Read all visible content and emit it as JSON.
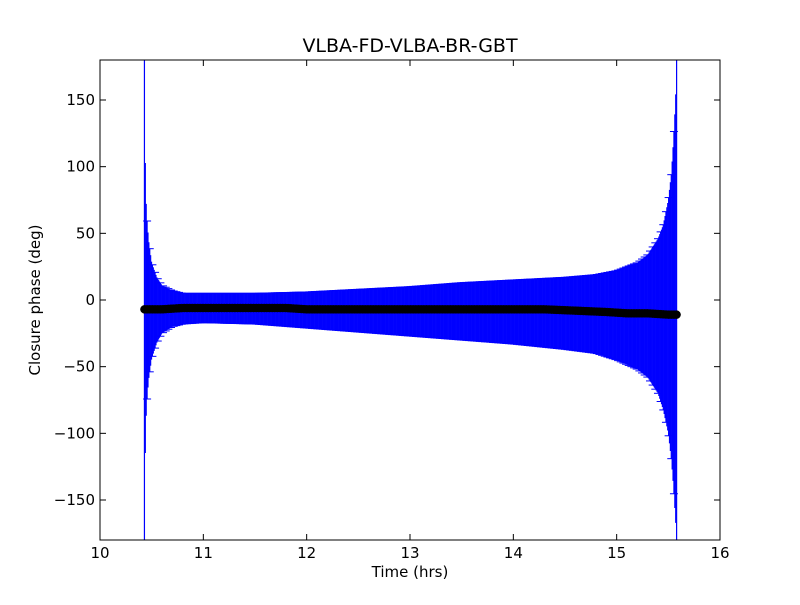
{
  "chart_data": {
    "type": "scatter",
    "title": "VLBA-FD-VLBA-BR-GBT",
    "xlabel": "Time (hrs)",
    "ylabel": "Closure phase (deg)",
    "xlim": [
      10,
      16
    ],
    "ylim": [
      -180,
      180
    ],
    "xticks": [
      10,
      11,
      12,
      13,
      14,
      15,
      16
    ],
    "yticks": [
      -150,
      -100,
      -50,
      0,
      50,
      100,
      150
    ],
    "xtick_labels": [
      "10",
      "11",
      "12",
      "13",
      "14",
      "15",
      "16"
    ],
    "ytick_labels": [
      "−150",
      "−100",
      "−50",
      "0",
      "50",
      "100",
      "150"
    ],
    "grid": false,
    "legend": "none",
    "series": [
      {
        "points": [
          [
            10.43,
            -7
          ],
          [
            10.6,
            -7
          ],
          [
            10.8,
            -6
          ],
          [
            11.0,
            -6
          ],
          [
            11.2,
            -6
          ],
          [
            11.5,
            -6
          ],
          [
            11.8,
            -6
          ],
          [
            12.0,
            -7
          ],
          [
            12.3,
            -7
          ],
          [
            12.6,
            -7
          ],
          [
            13.0,
            -7
          ],
          [
            13.4,
            -7
          ],
          [
            13.8,
            -7
          ],
          [
            14.0,
            -7
          ],
          [
            14.3,
            -7
          ],
          [
            14.6,
            -8
          ],
          [
            14.9,
            -9
          ],
          [
            15.1,
            -10
          ],
          [
            15.3,
            -10
          ],
          [
            15.5,
            -11
          ],
          [
            15.58,
            -11
          ]
        ],
        "error_upper": [
          [
            10.43,
            180
          ],
          [
            10.44,
            90
          ],
          [
            10.45,
            65
          ],
          [
            10.47,
            45
          ],
          [
            10.5,
            28
          ],
          [
            10.55,
            17
          ],
          [
            10.6,
            11
          ],
          [
            10.7,
            7
          ],
          [
            10.8,
            5
          ],
          [
            11.0,
            5
          ],
          [
            11.5,
            5
          ],
          [
            12.0,
            6
          ],
          [
            12.5,
            8
          ],
          [
            13.0,
            10
          ],
          [
            13.5,
            13
          ],
          [
            14.0,
            15
          ],
          [
            14.5,
            17
          ],
          [
            14.8,
            19
          ],
          [
            15.0,
            22
          ],
          [
            15.2,
            28
          ],
          [
            15.3,
            34
          ],
          [
            15.4,
            46
          ],
          [
            15.45,
            56
          ],
          [
            15.5,
            75
          ],
          [
            15.53,
            95
          ],
          [
            15.55,
            120
          ],
          [
            15.57,
            150
          ],
          [
            15.58,
            180
          ]
        ],
        "error_lower": [
          [
            10.43,
            -180
          ],
          [
            10.44,
            -104
          ],
          [
            10.45,
            -80
          ],
          [
            10.47,
            -60
          ],
          [
            10.5,
            -44
          ],
          [
            10.55,
            -32
          ],
          [
            10.6,
            -25
          ],
          [
            10.7,
            -20
          ],
          [
            10.8,
            -18
          ],
          [
            11.0,
            -17
          ],
          [
            11.5,
            -18
          ],
          [
            12.0,
            -21
          ],
          [
            12.5,
            -24
          ],
          [
            13.0,
            -27
          ],
          [
            13.5,
            -30
          ],
          [
            14.0,
            -33
          ],
          [
            14.5,
            -37
          ],
          [
            14.8,
            -40
          ],
          [
            15.0,
            -45
          ],
          [
            15.2,
            -52
          ],
          [
            15.3,
            -58
          ],
          [
            15.4,
            -70
          ],
          [
            15.45,
            -82
          ],
          [
            15.5,
            -100
          ],
          [
            15.53,
            -120
          ],
          [
            15.55,
            -140
          ],
          [
            15.57,
            -165
          ],
          [
            15.58,
            -180
          ]
        ]
      }
    ],
    "colors": {
      "errorbar": "#0000ff",
      "marker": "#000000"
    }
  }
}
